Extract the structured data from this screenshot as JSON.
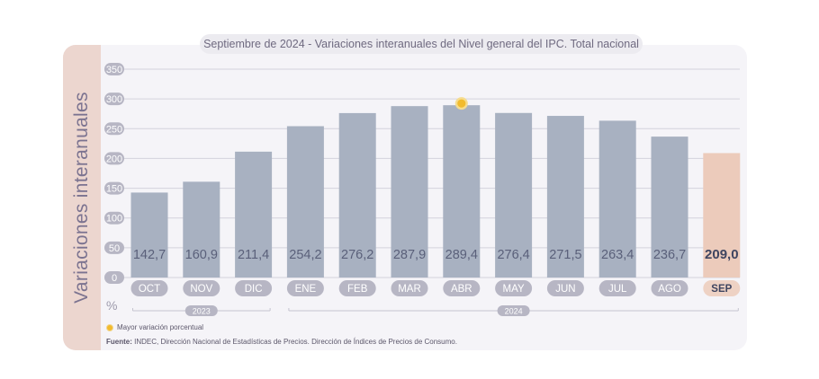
{
  "chart_data": {
    "type": "bar",
    "title": "Septiembre de 2024 - Variaciones interanuales del Nivel general del IPC. Total nacional",
    "ylabel": "Variaciones interanuales",
    "yunit": "%",
    "ylim": [
      0,
      350
    ],
    "yticks": [
      0,
      50,
      100,
      150,
      200,
      250,
      300,
      350
    ],
    "grid": true,
    "categories": [
      "OCT",
      "NOV",
      "DIC",
      "ENE",
      "FEB",
      "MAR",
      "ABR",
      "MAY",
      "JUN",
      "JUL",
      "AGO",
      "SEP"
    ],
    "values": [
      142.7,
      160.9,
      211.4,
      254.2,
      276.2,
      287.9,
      289.4,
      276.4,
      271.5,
      263.4,
      236.7,
      209.0
    ],
    "value_labels": [
      "142,7",
      "160,9",
      "211,4",
      "254,2",
      "276,2",
      "287,9",
      "289,4",
      "276,4",
      "271,5",
      "263,4",
      "236,7",
      "209,0"
    ],
    "highlight_category": "SEP",
    "max_marker_category": "ABR",
    "year_groups": [
      {
        "label": "2023",
        "from": "OCT",
        "to": "DIC"
      },
      {
        "label": "2024",
        "from": "ENE",
        "to": "SEP"
      }
    ],
    "colors": {
      "bar": "#a8b1c1",
      "highlight_bar": "#eccbbb",
      "value_text": "#5a607a",
      "marker": "#f2bb2d"
    }
  },
  "legend": {
    "max_marker_label": "Mayor variación porcentual"
  },
  "source": {
    "label": "Fuente:",
    "text": "INDEC, Dirección Nacional de Estadísticas de Precios. Dirección de Índices de Precios de Consumo."
  }
}
